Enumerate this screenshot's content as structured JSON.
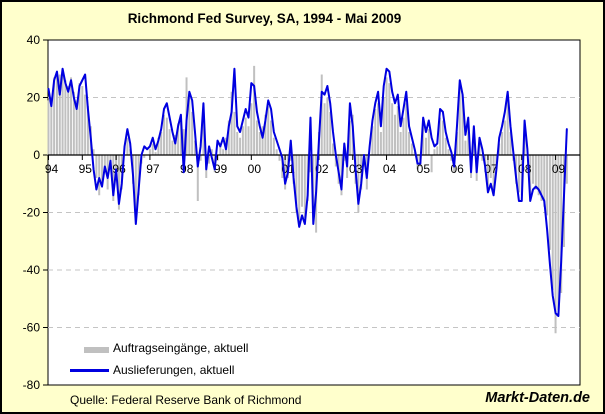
{
  "title": "Richmond Fed Survey, SA, 1994 - Mai 2009",
  "source": "Quelle: Federal Reserve Bank of Richmond",
  "watermark": "Markt-Daten.de",
  "legend": {
    "bars": "Auftragseingänge, aktuell",
    "line": "Auslieferungen, aktuell"
  },
  "colors": {
    "background": "#FFFFCC",
    "plot_bg": "#FFFFFF",
    "bar": "#C0C0C0",
    "line": "#0000E0",
    "grid": "#C4C4C4",
    "axis": "#000000"
  },
  "chart_data": {
    "type": "bar+line",
    "title": "Richmond Fed Survey, SA, 1994 - Mai 2009",
    "x_unit": "month, Jan 1994 - May 2009",
    "x_labels": [
      "94",
      "95",
      "96",
      "97",
      "98",
      "99",
      "00",
      "01",
      "02",
      "03",
      "04",
      "05",
      "06",
      "07",
      "08",
      "09"
    ],
    "months_per_label": 12,
    "ylim": [
      -80,
      40
    ],
    "y_ticks": [
      40,
      20,
      0,
      -20,
      -40,
      -60,
      -80
    ],
    "gridlines": [
      20,
      -20,
      -40,
      -60
    ],
    "legend_position": "bottom-left inside plot",
    "series": [
      {
        "name": "Auftragseingänge, aktuell",
        "type": "bar",
        "color": "#C0C0C0",
        "values": [
          19,
          20,
          27,
          29,
          28,
          29,
          26,
          24,
          27,
          22,
          19,
          25,
          24,
          21,
          17,
          10,
          2,
          -8,
          -14,
          -10,
          -6,
          -12,
          -5,
          -16,
          -8,
          -19,
          -12,
          0,
          6,
          2,
          -10,
          -21,
          -14,
          -3,
          -1,
          0,
          2,
          4,
          1,
          6,
          8,
          14,
          13,
          9,
          5,
          7,
          11,
          12,
          9,
          27,
          20,
          15,
          5,
          -16,
          -2,
          12,
          -8,
          -3,
          2,
          -6,
          -2,
          4,
          2,
          6,
          12,
          22,
          15,
          8,
          6,
          10,
          13,
          10,
          18,
          31,
          12,
          8,
          10,
          14,
          17,
          12,
          6,
          2,
          -2,
          -8,
          -12,
          -8,
          -2,
          -10,
          -20,
          -24,
          -18,
          -22,
          -16,
          -6,
          -20,
          -27,
          8,
          28,
          18,
          20,
          15,
          4,
          -4,
          -10,
          -14,
          -2,
          -8,
          12,
          14,
          -10,
          -20,
          -12,
          -4,
          -12,
          0,
          10,
          16,
          18,
          8,
          20,
          27,
          25,
          18,
          14,
          17,
          8,
          13,
          18,
          8,
          4,
          1,
          -5,
          -4,
          10,
          6,
          9,
          -6,
          2,
          3,
          13,
          12,
          6,
          2,
          -2,
          -6,
          8,
          24,
          21,
          5,
          10,
          -8,
          8,
          -9,
          4,
          -2,
          -6,
          -11,
          -8,
          -12,
          -4,
          4,
          8,
          12,
          20,
          8,
          -2,
          -10,
          -13,
          -14,
          10,
          0,
          -14,
          -10,
          -12,
          -14,
          -16,
          -18,
          -21,
          -33,
          -47,
          -62,
          -54,
          -48,
          -32,
          -10
        ]
      },
      {
        "name": "Auslieferungen, aktuell",
        "type": "line",
        "color": "#0000E0",
        "values": [
          23,
          17,
          26,
          29,
          21,
          30,
          25,
          22,
          26,
          20,
          16,
          24,
          26,
          28,
          16,
          6,
          -5,
          -12,
          -8,
          -11,
          -4,
          -8,
          -2,
          -14,
          -5,
          -17,
          -10,
          3,
          9,
          4,
          -7,
          -24,
          -12,
          0,
          3,
          2,
          3,
          6,
          2,
          5,
          9,
          16,
          18,
          13,
          8,
          4,
          10,
          14,
          -6,
          12,
          22,
          19,
          8,
          -4,
          3,
          18,
          -5,
          3,
          -1,
          -5,
          5,
          3,
          6,
          2,
          10,
          15,
          30,
          10,
          8,
          12,
          16,
          13,
          25,
          24,
          15,
          10,
          6,
          12,
          19,
          16,
          8,
          5,
          2,
          -1,
          -10,
          -6,
          5,
          -8,
          -18,
          -25,
          -21,
          -24,
          -14,
          13,
          -24,
          -13,
          5,
          22,
          21,
          24,
          18,
          8,
          0,
          -6,
          -12,
          4,
          -4,
          18,
          10,
          -5,
          -17,
          -10,
          0,
          -8,
          3,
          12,
          18,
          22,
          10,
          24,
          30,
          29,
          22,
          18,
          21,
          10,
          16,
          22,
          10,
          6,
          2,
          -3,
          -3,
          13,
          8,
          12,
          6,
          3,
          4,
          16,
          15,
          8,
          4,
          1,
          -4,
          10,
          26,
          21,
          7,
          13,
          -6,
          10,
          -6,
          6,
          2,
          -4,
          -13,
          -10,
          -14,
          -5,
          6,
          10,
          15,
          22,
          10,
          1,
          -8,
          -16,
          -16,
          12,
          2,
          -16,
          -12,
          -11,
          -12,
          -14,
          -16,
          -26,
          -38,
          -49,
          -55,
          -56,
          -37,
          -14,
          9
        ]
      }
    ]
  }
}
